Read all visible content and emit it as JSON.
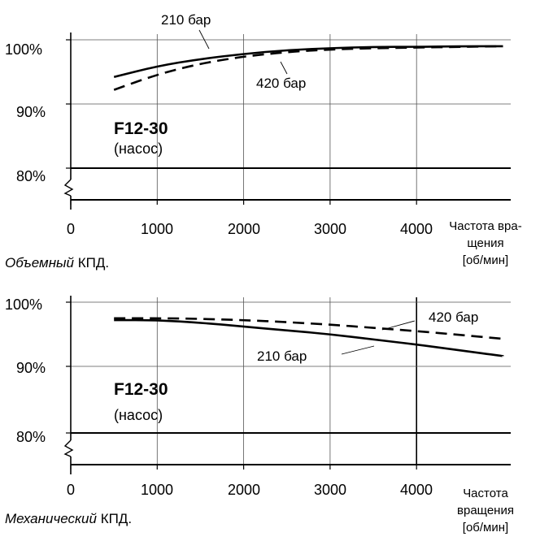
{
  "chart_data": [
    {
      "type": "line",
      "caption_italic": "Объемный",
      "caption_rest": "КПД.",
      "model": "F12-30",
      "model_sub": "(насос)",
      "x_ticks": [
        "0",
        "1000",
        "2000",
        "3000",
        "4000"
      ],
      "xlabel_lines": [
        "Частота вра-",
        "щения",
        "[об/мин]"
      ],
      "y_ticks": [
        "100%",
        "90%",
        "80%"
      ],
      "xlim": [
        0,
        5000
      ],
      "ylim": [
        75,
        102
      ],
      "y_axis_break": true,
      "series": [
        {
          "name": "210 бар",
          "style": "solid",
          "x": [
            500,
            1000,
            1500,
            2000,
            2500,
            3000,
            3500,
            4000,
            4500,
            5000
          ],
          "y": [
            94.2,
            95.9,
            97.0,
            97.8,
            98.4,
            98.7,
            98.9,
            98.9,
            99.0,
            99.0
          ]
        },
        {
          "name": "420 бар",
          "style": "dashed",
          "x": [
            500,
            1000,
            1500,
            2000,
            2500,
            3000,
            3500,
            4000,
            4500,
            5000
          ],
          "y": [
            92.2,
            94.6,
            96.3,
            97.4,
            98.1,
            98.5,
            98.7,
            98.8,
            98.9,
            99.0
          ]
        }
      ]
    },
    {
      "type": "line",
      "caption_italic": "Механический",
      "caption_rest": "КПД.",
      "model": "F12-30",
      "model_sub": "(насос)",
      "x_ticks": [
        "0",
        "1000",
        "2000",
        "3000",
        "4000"
      ],
      "xlabel_lines": [
        "Частота",
        "вращения",
        "[об/мин]"
      ],
      "y_ticks": [
        "100%",
        "90%",
        "80%"
      ],
      "xlim": [
        0,
        5000
      ],
      "ylim": [
        75,
        102
      ],
      "y_axis_break": true,
      "series": [
        {
          "name": "210 бар",
          "style": "solid",
          "x": [
            500,
            1000,
            1500,
            2000,
            2500,
            3000,
            3500,
            4000,
            4500,
            5000
          ],
          "y": [
            97.2,
            97.2,
            96.8,
            96.2,
            95.6,
            95.0,
            94.2,
            93.4,
            92.5,
            91.6
          ]
        },
        {
          "name": "420 бар",
          "style": "dashed",
          "x": [
            500,
            1000,
            1500,
            2000,
            2500,
            3000,
            3500,
            4000,
            4500,
            5000
          ],
          "y": [
            97.5,
            97.5,
            97.4,
            97.2,
            96.9,
            96.5,
            96.0,
            95.5,
            94.9,
            94.3
          ]
        }
      ]
    }
  ]
}
